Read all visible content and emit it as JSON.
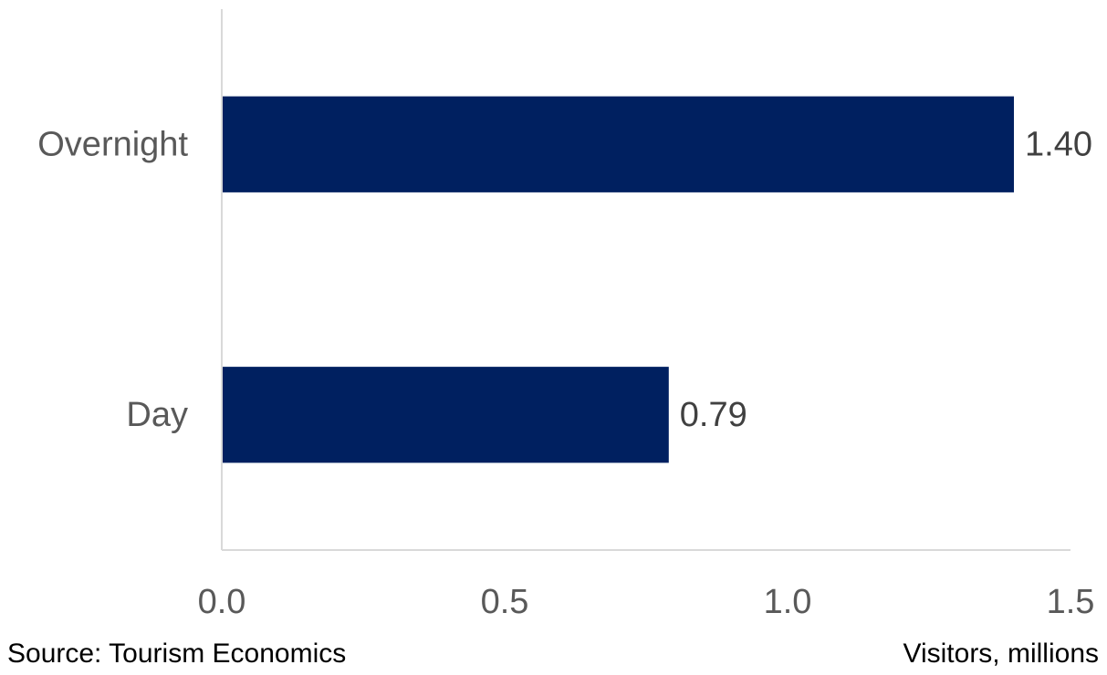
{
  "chart_data": {
    "type": "bar",
    "orientation": "horizontal",
    "categories": [
      "Overnight",
      "Day"
    ],
    "values": [
      1.4,
      0.79
    ],
    "data_labels": [
      "1.40",
      "0.79"
    ],
    "xlim": [
      0,
      1.5
    ],
    "x_ticks": [
      0.0,
      0.5,
      1.0,
      1.5
    ],
    "x_tick_labels": [
      "0.0",
      "0.5",
      "1.0",
      "1.5"
    ],
    "grid": false,
    "legend": "none",
    "bar_color": "#002060"
  },
  "footer": {
    "source": "Source: Tourism Economics",
    "unit": "Visitors, millions"
  }
}
